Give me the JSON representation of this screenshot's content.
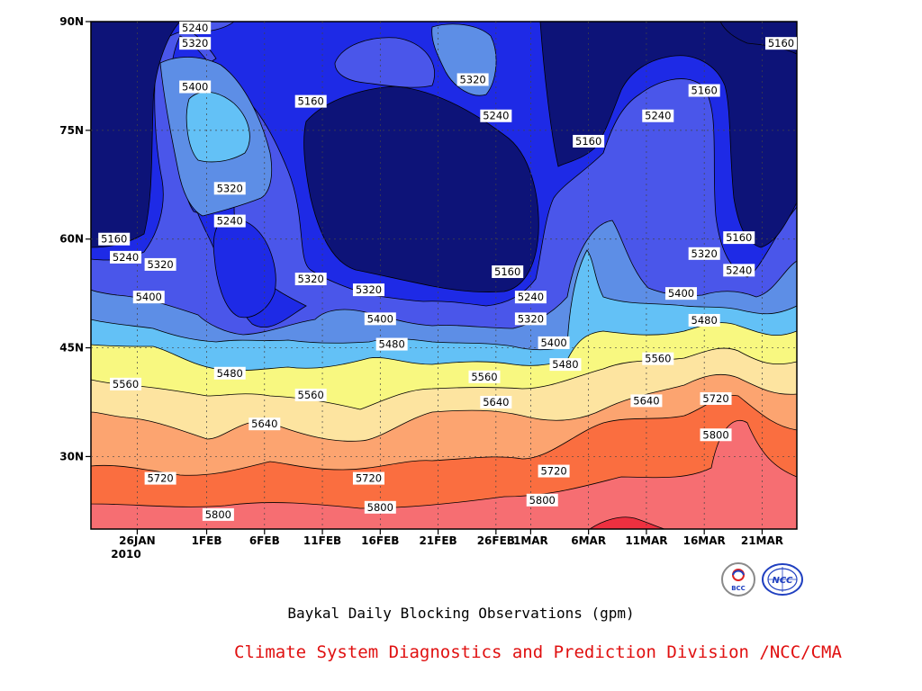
{
  "chart_data": {
    "type": "heatmap",
    "subtype": "filled-contour",
    "title": "Baykal Daily Blocking Observations (gpm)",
    "x_ticks": [
      "26JAN",
      "1FEB",
      "6FEB",
      "11FEB",
      "16FEB",
      "21FEB",
      "26FEB",
      "1MAR",
      "6MAR",
      "11MAR",
      "16MAR",
      "21MAR"
    ],
    "x_year_label": "2010",
    "y_ticks": [
      "90N",
      "75N",
      "60N",
      "45N",
      "30N"
    ],
    "x_range": [
      "22JAN2010",
      "24MAR2010"
    ],
    "ylim": [
      20,
      90
    ],
    "contour_levels": [
      5160,
      5240,
      5320,
      5400,
      5480,
      5560,
      5640,
      5720,
      5800,
      5880
    ],
    "level_colors": [
      "#0d1378",
      "#1e2ae6",
      "#4a56ea",
      "#5d8ee6",
      "#63c1f6",
      "#f8f880",
      "#fde4a0",
      "#fca470",
      "#fa6e40",
      "#f66e72",
      "#ee3040"
    ],
    "contour_labels": [
      {
        "text": "5240",
        "date": "2010-01-31",
        "lat": 90
      },
      {
        "text": "5320",
        "date": "2010-01-31",
        "lat": 87
      },
      {
        "text": "5400",
        "date": "2010-01-31",
        "lat": 81
      },
      {
        "text": "5320",
        "date": "2010-02-03",
        "lat": 67
      },
      {
        "text": "5240",
        "date": "2010-02-03",
        "lat": 62.5
      },
      {
        "text": "5160",
        "date": "2010-01-24",
        "lat": 60
      },
      {
        "text": "5240",
        "date": "2010-01-25",
        "lat": 57.5
      },
      {
        "text": "5320",
        "date": "2010-01-28",
        "lat": 56.5
      },
      {
        "text": "5400",
        "date": "2010-01-27",
        "lat": 52
      },
      {
        "text": "5480",
        "date": "2010-02-03",
        "lat": 41.5
      },
      {
        "text": "5560",
        "date": "2010-01-25",
        "lat": 40
      },
      {
        "text": "5640",
        "date": "2010-02-06",
        "lat": 34.5
      },
      {
        "text": "5720",
        "date": "2010-01-28",
        "lat": 27
      },
      {
        "text": "5800",
        "date": "2010-02-02",
        "lat": 22
      },
      {
        "text": "5160",
        "date": "2010-02-10",
        "lat": 79
      },
      {
        "text": "5320",
        "date": "2010-02-10",
        "lat": 54.5
      },
      {
        "text": "5560",
        "date": "2010-02-10",
        "lat": 38.5
      },
      {
        "text": "5320",
        "date": "2010-02-15",
        "lat": 53
      },
      {
        "text": "5400",
        "date": "2010-02-16",
        "lat": 49
      },
      {
        "text": "5480",
        "date": "2010-02-17",
        "lat": 45.5
      },
      {
        "text": "5720",
        "date": "2010-02-15",
        "lat": 27
      },
      {
        "text": "5800",
        "date": "2010-02-16",
        "lat": 23
      },
      {
        "text": "5320",
        "date": "2010-02-24",
        "lat": 82
      },
      {
        "text": "5240",
        "date": "2010-02-26",
        "lat": 77
      },
      {
        "text": "5160",
        "date": "2010-02-27",
        "lat": 55.5
      },
      {
        "text": "5240",
        "date": "2010-02-29",
        "lat": 52
      },
      {
        "text": "5320",
        "date": "2010-03-01",
        "lat": 49
      },
      {
        "text": "5400",
        "date": "2010-03-03",
        "lat": 45.7
      },
      {
        "text": "5480",
        "date": "2010-03-04",
        "lat": 42.7
      },
      {
        "text": "5560",
        "date": "2010-02-25",
        "lat": 41
      },
      {
        "text": "5640",
        "date": "2010-02-26",
        "lat": 37.5
      },
      {
        "text": "5720",
        "date": "2010-03-03",
        "lat": 28
      },
      {
        "text": "5800",
        "date": "2010-03-02",
        "lat": 24
      },
      {
        "text": "5160",
        "date": "2010-03-06",
        "lat": 73.5
      },
      {
        "text": "5240",
        "date": "2010-03-12",
        "lat": 77
      },
      {
        "text": "5160",
        "date": "2010-03-16",
        "lat": 80.5
      },
      {
        "text": "5160",
        "date": "2010-03-23",
        "lat": 87
      },
      {
        "text": "5320",
        "date": "2010-03-16",
        "lat": 58
      },
      {
        "text": "5160",
        "date": "2010-03-19",
        "lat": 60.2
      },
      {
        "text": "5240",
        "date": "2010-03-19",
        "lat": 55.7
      },
      {
        "text": "5400",
        "date": "2010-03-14",
        "lat": 52.5
      },
      {
        "text": "5480",
        "date": "2010-03-16",
        "lat": 48.8
      },
      {
        "text": "5560",
        "date": "2010-03-12",
        "lat": 43.5
      },
      {
        "text": "5640",
        "date": "2010-03-11",
        "lat": 37.7
      },
      {
        "text": "5720",
        "date": "2010-03-17",
        "lat": 38
      },
      {
        "text": "5800",
        "date": "2010-03-17",
        "lat": 33
      }
    ]
  },
  "footer": {
    "title": "Baykal Daily Blocking Observations (gpm)",
    "credit": "Climate System Diagnostics and Prediction Division /NCC/CMA",
    "logo_left": "BCC",
    "logo_right": "NCC"
  }
}
